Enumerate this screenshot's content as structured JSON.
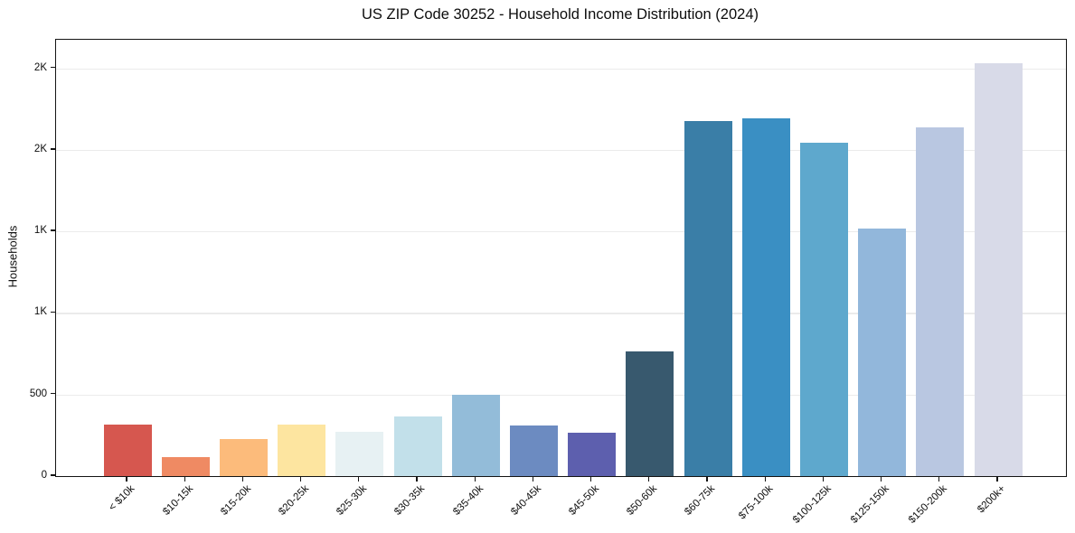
{
  "figure": {
    "background": "#ffffff",
    "spine_color": "#141414",
    "text_color": "#0d0d0d"
  },
  "chart_data": {
    "type": "bar",
    "title": "US ZIP Code 30252 - Household Income Distribution (2024)",
    "xlabel": "",
    "ylabel": "Households",
    "categories": [
      "< $10k",
      "$10-15k",
      "$15-20k",
      "$20-25k",
      "$25-30k",
      "$30-35k",
      "$35-40k",
      "$40-45k",
      "$45-50k",
      "$50-60k",
      "$60-75k",
      "$75-100k",
      "$100-125k",
      "$125-150k",
      "$150-200k",
      "$200k+"
    ],
    "values": [
      318,
      117,
      228,
      316,
      270,
      366,
      497,
      311,
      264,
      763,
      2175,
      2192,
      2042,
      1518,
      2138,
      2532
    ],
    "bar_colors": [
      "#d6574f",
      "#ef8a63",
      "#fcbb7b",
      "#fde5a0",
      "#e7f1f3",
      "#c2e0ea",
      "#93bcd9",
      "#6c8bc1",
      "#5d5fae",
      "#38596e",
      "#3a7ea7",
      "#3a8fc3",
      "#5ea8cd",
      "#92b7db",
      "#b9c7e1",
      "#d8dae8"
    ],
    "ylim": [
      0,
      2675
    ],
    "yticks": [
      {
        "value": 0,
        "label": "0"
      },
      {
        "value": 500,
        "label": "500"
      },
      {
        "value": 1000,
        "label": "1K"
      },
      {
        "value": 1500,
        "label": "1K"
      },
      {
        "value": 2000,
        "label": "2K"
      },
      {
        "value": 2500,
        "label": "2K"
      }
    ],
    "grid": "horizontal",
    "gridline_color": "#ebebeb",
    "legend": "none",
    "x_tick_rotation": 45
  }
}
